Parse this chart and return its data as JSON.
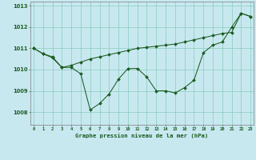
{
  "xlabel": "Graphe pression niveau de la mer (hPa)",
  "background_color": "#c8e8f0",
  "grid_color": "#88ccbb",
  "line_color": "#1a5c20",
  "xlim": [
    -0.3,
    23.3
  ],
  "ylim": [
    1007.4,
    1013.2
  ],
  "yticks": [
    1008,
    1009,
    1010,
    1011,
    1012,
    1013
  ],
  "xticks": [
    0,
    1,
    2,
    3,
    4,
    5,
    6,
    7,
    8,
    9,
    10,
    11,
    12,
    13,
    14,
    15,
    16,
    17,
    18,
    19,
    20,
    21,
    22,
    23
  ],
  "line1_x": [
    0,
    1,
    2,
    3,
    4,
    5,
    6,
    7,
    8,
    9,
    10,
    11,
    12,
    13,
    14,
    15,
    16,
    17,
    18,
    19,
    20,
    21,
    22,
    23
  ],
  "line1_y": [
    1011.0,
    1010.75,
    1010.6,
    1010.1,
    1010.1,
    1009.8,
    1008.1,
    1008.4,
    1008.85,
    1009.55,
    1010.05,
    1010.05,
    1009.65,
    1009.0,
    1009.0,
    1008.9,
    1009.15,
    1009.5,
    1010.8,
    1011.15,
    1011.3,
    1012.0,
    1012.65,
    1012.5
  ],
  "line2_x": [
    0,
    1,
    2,
    3,
    4,
    5,
    6,
    7,
    8,
    9,
    10,
    11,
    12,
    13,
    14,
    15,
    16,
    17,
    18,
    19,
    20,
    21,
    22,
    23
  ],
  "line2_y": [
    1011.0,
    1010.75,
    1010.55,
    1010.1,
    1010.2,
    1010.35,
    1010.5,
    1010.6,
    1010.7,
    1010.8,
    1010.9,
    1011.0,
    1011.05,
    1011.1,
    1011.15,
    1011.2,
    1011.3,
    1011.4,
    1011.5,
    1011.6,
    1011.7,
    1011.75,
    1012.65,
    1012.5
  ]
}
